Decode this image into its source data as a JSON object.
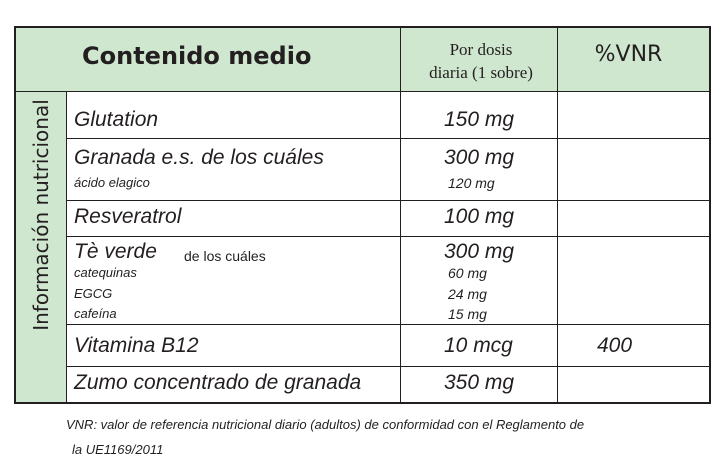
{
  "table": {
    "side_label": "Información nutricional",
    "header": {
      "title": "Contenido medio",
      "dose_line1": "Por dosis",
      "dose_line2": "diaria (1 sobre)",
      "vnr": "%VNR"
    },
    "rows": [
      {
        "name": "Glutation",
        "amount": "150 mg",
        "vnr": ""
      },
      {
        "name": "Granada e.s. de los cuáles",
        "amount": "300 mg",
        "vnr": "",
        "sub": [
          {
            "name": "ácido elagico",
            "amount": "120 mg"
          }
        ]
      },
      {
        "name": "Resveratrol",
        "amount": "100 mg",
        "vnr": ""
      },
      {
        "name": "Tè verde",
        "note": "de los cuáles",
        "amount": "300 mg",
        "vnr": "",
        "sub": [
          {
            "name": "catequinas",
            "amount": "60 mg"
          },
          {
            "name": "EGCG",
            "amount": "24 mg"
          },
          {
            "name": "cafeína",
            "amount": "15 mg"
          }
        ]
      },
      {
        "name": "Vitamina B12",
        "amount": "10 mcg",
        "vnr": "400"
      },
      {
        "name": "Zumo concentrado de granada",
        "amount": "350 mg",
        "vnr": ""
      }
    ]
  },
  "footnote": {
    "line1": "VNR: valor de referencia nutricional diario (adultos) de conformidad con el Reglamento de",
    "line2": "la UE1169/2011"
  },
  "colors": {
    "header_green": "#cfe6cf",
    "side_green": "#cfe6cf",
    "border": "#231f20"
  }
}
